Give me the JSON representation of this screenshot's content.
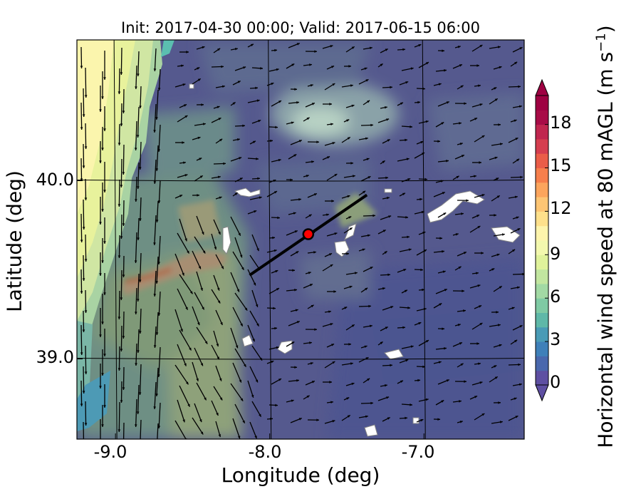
{
  "chart_data": {
    "type": "heatmap",
    "title": "Init: 2017-04-30 00:00; Valid: 2017-06-15 06:00",
    "xlabel": "Longitude (deg)",
    "ylabel": "Latitude (deg)",
    "colorbar_label_main": "Horizontal wind speed at 80 mAGL (m s",
    "colorbar_label_sup": "−1",
    "colorbar_label_end": ")",
    "xlim": [
      -9.25,
      -6.35
    ],
    "ylim": [
      38.55,
      40.79
    ],
    "grid": true,
    "x_ticks": [
      -9.0,
      -8.0,
      -7.0
    ],
    "x_tick_labels": [
      "-9.0",
      "-8.0",
      "-7.0"
    ],
    "y_ticks": [
      39.0,
      40.0
    ],
    "y_tick_labels": [
      "39.0",
      "40.0"
    ],
    "colorbar": {
      "range": [
        0,
        20
      ],
      "ticks": [
        0,
        3,
        6,
        9,
        12,
        15,
        18
      ],
      "tick_labels": [
        "0",
        "3",
        "6",
        "9",
        "12",
        "15",
        "18"
      ],
      "extend": "both",
      "colors": [
        "#5e4fa2",
        "#4a68ad",
        "#3f80b9",
        "#4a9bb6",
        "#5fb8a8",
        "#7fcaa4",
        "#a2d9a4",
        "#c2e6a0",
        "#e0f29b",
        "#f3f8ae",
        "#fef4ac",
        "#fee08b",
        "#fdc574",
        "#fca55d",
        "#f67f4c",
        "#ea5d48",
        "#d53e4f",
        "#c0264f",
        "#a80c47",
        "#9e0142"
      ]
    },
    "cross_section": {
      "start": [
        -8.13,
        39.47
      ],
      "end": [
        -7.37,
        39.92
      ]
    },
    "marker": {
      "lon": -7.75,
      "lat": 39.7,
      "color": "#ff0000"
    }
  }
}
